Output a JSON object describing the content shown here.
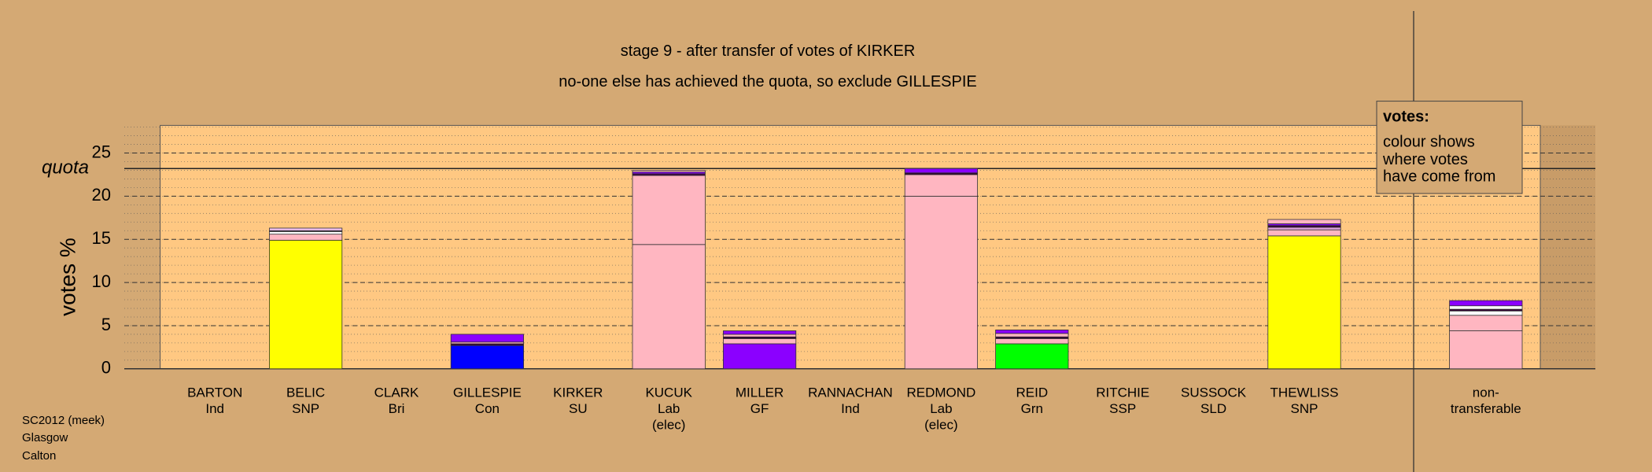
{
  "chart_data": {
    "type": "bar",
    "title": "stage 9 - after transfer of votes of KIRKER",
    "subtitle": "no-one else has achieved the quota, so exclude GILLESPIE",
    "y_label": "votes %",
    "quota_label": "quota",
    "quota": 23.2,
    "ylim": [
      0,
      28.2
    ],
    "yticks": [
      0,
      5,
      10,
      15,
      20,
      25
    ],
    "grid": true,
    "minor_grid": 1,
    "legend_title": "votes:",
    "legend_text": [
      "colour shows",
      "where votes",
      "have come from"
    ],
    "footer": [
      "SC2012 (meek)",
      "Glasgow",
      "Calton"
    ],
    "categories": [
      [
        "BARTON",
        "Ind"
      ],
      [
        "BELIC",
        "SNP"
      ],
      [
        "CLARK",
        "Bri"
      ],
      [
        "GILLESPIE",
        "Con"
      ],
      [
        "KIRKER",
        "SU"
      ],
      [
        "KUCUK",
        "Lab",
        "(elec)"
      ],
      [
        "MILLER",
        "GF"
      ],
      [
        "RANNACHAN",
        "Ind"
      ],
      [
        "REDMOND",
        "Lab",
        "(elec)"
      ],
      [
        "REID",
        "Grn"
      ],
      [
        "RITCHIE",
        "SSP"
      ],
      [
        "SUSSOCK",
        "SLD"
      ],
      [
        "THEWLISS",
        "SNP"
      ],
      [
        "non-",
        "transferable"
      ]
    ],
    "stacks": [
      [],
      [
        {
          "value": 14.9,
          "color": "#ffff00"
        },
        {
          "value": 0.7,
          "color": "#ffb6c1"
        },
        {
          "value": 0.3,
          "color": "#ffffff"
        },
        {
          "value": 0.1,
          "color": "#300030"
        },
        {
          "value": 0.3,
          "color": "#f0c0f0"
        }
      ],
      [],
      [
        {
          "value": 2.7,
          "color": "#0000ff"
        },
        {
          "value": 0.2,
          "color": "#330033"
        },
        {
          "value": 0.2,
          "color": "#ffb6c1"
        },
        {
          "value": 0.9,
          "color": "#8b00ff"
        }
      ],
      [],
      [
        {
          "value": 14.4,
          "color": "#ffb6c1"
        },
        {
          "value": 8.0,
          "color": "#ffb6c1"
        },
        {
          "value": 0.2,
          "color": "#400040"
        },
        {
          "value": 0.2,
          "color": "#8b00ff"
        },
        {
          "value": 0.2,
          "color": "#ffb6c1"
        }
      ],
      [
        {
          "value": 2.9,
          "color": "#8b00ff"
        },
        {
          "value": 0.6,
          "color": "#ffb6c1"
        },
        {
          "value": 0.2,
          "color": "#330033"
        },
        {
          "value": 0.3,
          "color": "#ffb6c1"
        },
        {
          "value": 0.4,
          "color": "#8b00ff"
        }
      ],
      [],
      [
        {
          "value": 20.0,
          "color": "#ffb6c1"
        },
        {
          "value": 2.5,
          "color": "#ffb6c1"
        },
        {
          "value": 0.2,
          "color": "#330033"
        },
        {
          "value": 0.5,
          "color": "#8b00ff"
        }
      ],
      [
        {
          "value": 2.9,
          "color": "#00ff00"
        },
        {
          "value": 0.6,
          "color": "#ffb6c1"
        },
        {
          "value": 0.2,
          "color": "#330033"
        },
        {
          "value": 0.4,
          "color": "#ffb6c1"
        },
        {
          "value": 0.4,
          "color": "#8b00ff"
        }
      ],
      [],
      [],
      [
        {
          "value": 15.4,
          "color": "#ffff00"
        },
        {
          "value": 0.7,
          "color": "#ffb6c1"
        },
        {
          "value": 0.3,
          "color": "#e0a0e0"
        },
        {
          "value": 0.2,
          "color": "#330033"
        },
        {
          "value": 0.2,
          "color": "#8b00ff"
        },
        {
          "value": 0.5,
          "color": "#ffb6c1"
        }
      ],
      [
        {
          "value": 4.4,
          "color": "#ffb6c1"
        },
        {
          "value": 1.8,
          "color": "#ffb6c1"
        },
        {
          "value": 0.5,
          "color": "#ffffff"
        },
        {
          "value": 0.2,
          "color": "#330033"
        },
        {
          "value": 0.4,
          "color": "#ffffff"
        },
        {
          "value": 0.6,
          "color": "#8b00ff"
        }
      ]
    ]
  }
}
